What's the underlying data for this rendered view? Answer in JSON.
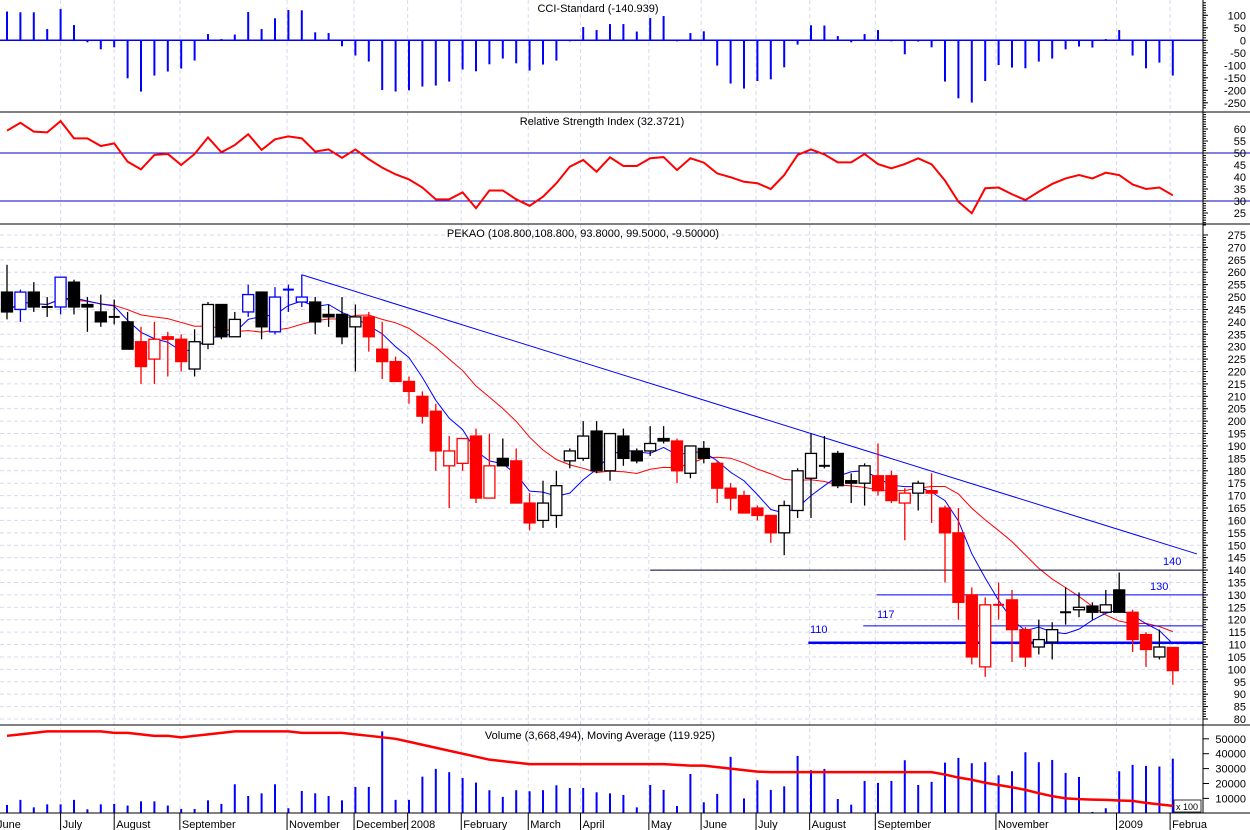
{
  "titles": {
    "cci": "CCI-Standard (-140.939)",
    "rsi": "Relative Strength Index (32.3721)",
    "price": "PEKAO (108.800,108.800, 93.8000, 99.5000, -9.50000)",
    "volume": "Volume (3,668,494), Moving Average (119.925)"
  },
  "colors": {
    "k": "#000000",
    "b": "#0000ff",
    "r": "#ff0000",
    "ma_fast": "#0000ff",
    "ma_slow": "#ff0000",
    "grid": "#d8d8f0"
  },
  "chart_data": {
    "type": "candlestick",
    "symbol": "PEKAO",
    "period": "weekly",
    "months": [
      {
        "label": "June",
        "at": -0.9
      },
      {
        "label": "July",
        "at": 4.0
      },
      {
        "label": "August",
        "at": 8.0
      },
      {
        "label": "September",
        "at": 12.9
      },
      {
        "label": "November",
        "at": 20.9
      },
      {
        "label": "December",
        "at": 25.9
      },
      {
        "label": "2008",
        "at": 29.9
      },
      {
        "label": "February",
        "at": 33.9
      },
      {
        "label": "March",
        "at": 38.9
      },
      {
        "label": "April",
        "at": 42.8
      },
      {
        "label": "May",
        "at": 47.9
      },
      {
        "label": "June",
        "at": 51.8
      },
      {
        "label": "July",
        "at": 55.9
      },
      {
        "label": "August",
        "at": 59.9
      },
      {
        "label": "September",
        "at": 64.8
      },
      {
        "label": "November",
        "at": 73.8
      },
      {
        "label": "2009",
        "at": 82.8
      },
      {
        "label": "Februa",
        "at": 86.8
      }
    ],
    "price": {
      "ylim": [
        80,
        275
      ],
      "ticks": [
        275,
        270,
        265,
        260,
        255,
        250,
        245,
        240,
        235,
        230,
        225,
        220,
        215,
        210,
        205,
        200,
        195,
        190,
        185,
        180,
        175,
        170,
        165,
        160,
        155,
        150,
        145,
        140,
        135,
        130,
        125,
        120,
        115,
        110,
        105,
        100,
        95,
        90,
        85,
        80
      ],
      "candles_ohlc_color": [
        [
          252,
          263,
          241,
          244,
          "k"
        ],
        [
          245,
          253,
          240,
          252,
          "b"
        ],
        [
          252,
          256,
          244,
          246,
          "k"
        ],
        [
          246,
          250,
          242,
          246,
          "k"
        ],
        [
          246,
          258,
          243,
          258,
          "b"
        ],
        [
          256,
          257,
          243,
          246,
          "k"
        ],
        [
          247,
          250,
          236,
          246,
          "k"
        ],
        [
          244,
          251,
          238,
          240,
          "k"
        ],
        [
          242,
          249,
          239,
          242,
          "k"
        ],
        [
          240,
          244,
          229,
          229,
          "k"
        ],
        [
          232,
          238,
          215,
          222,
          "r"
        ],
        [
          225,
          240,
          215,
          233,
          "r"
        ],
        [
          234,
          236,
          218,
          233,
          "r"
        ],
        [
          233,
          235,
          220,
          224,
          "r"
        ],
        [
          221,
          237,
          218,
          232,
          "k"
        ],
        [
          231,
          248,
          229,
          247,
          "k"
        ],
        [
          247,
          247,
          233,
          234,
          "k"
        ],
        [
          234,
          244,
          234,
          241,
          "k"
        ],
        [
          244,
          255,
          242,
          251,
          "b"
        ],
        [
          252,
          252,
          233,
          238,
          "k"
        ],
        [
          236,
          254,
          235,
          250,
          "b"
        ],
        [
          253,
          255,
          244,
          253,
          "b"
        ],
        [
          248,
          259,
          246,
          250,
          "b"
        ],
        [
          248,
          250,
          235,
          240,
          "k"
        ],
        [
          243,
          247,
          238,
          242,
          "k"
        ],
        [
          243,
          250,
          231,
          234,
          "k"
        ],
        [
          238,
          247,
          220,
          242,
          "k"
        ],
        [
          242,
          244,
          228,
          234,
          "r"
        ],
        [
          229,
          240,
          217,
          224,
          "r"
        ],
        [
          224,
          226,
          216,
          216,
          "r"
        ],
        [
          216,
          218,
          207,
          212,
          "r"
        ],
        [
          210,
          212,
          199,
          202,
          "r"
        ],
        [
          204,
          207,
          180,
          188,
          "r"
        ],
        [
          182,
          194,
          165,
          188,
          "r"
        ],
        [
          183,
          193,
          180,
          193,
          "r"
        ],
        [
          194,
          197,
          167,
          169,
          "r"
        ],
        [
          169,
          195,
          169,
          182,
          "r"
        ],
        [
          185,
          193,
          182,
          182,
          "k"
        ],
        [
          184,
          189,
          167,
          167,
          "r"
        ],
        [
          167,
          171,
          156,
          159,
          "r"
        ],
        [
          160,
          176,
          157,
          167,
          "k"
        ],
        [
          162,
          180,
          157,
          174,
          "k"
        ],
        [
          184,
          189,
          181,
          188,
          "k"
        ],
        [
          185,
          200,
          184,
          194,
          "k"
        ],
        [
          196,
          200,
          179,
          180,
          "k"
        ],
        [
          180,
          195,
          176,
          195,
          "k"
        ],
        [
          194,
          197,
          182,
          185,
          "k"
        ],
        [
          188,
          189,
          183,
          184,
          "k"
        ],
        [
          188,
          198,
          186,
          191,
          "k"
        ],
        [
          193,
          198,
          191,
          192,
          "k"
        ],
        [
          192,
          193,
          175,
          180,
          "r"
        ],
        [
          179,
          190,
          177,
          190,
          "k"
        ],
        [
          189,
          192,
          183,
          185,
          "k"
        ],
        [
          183,
          184,
          167,
          173,
          "r"
        ],
        [
          173,
          175,
          164,
          169,
          "r"
        ],
        [
          170,
          172,
          163,
          163,
          "r"
        ],
        [
          165,
          166,
          160,
          162,
          "r"
        ],
        [
          162,
          162,
          151,
          155,
          "r"
        ],
        [
          155,
          168,
          146,
          166,
          "k"
        ],
        [
          164,
          181,
          161,
          180,
          "k"
        ],
        [
          177,
          195,
          161,
          187,
          "k"
        ],
        [
          182,
          194,
          181,
          182,
          "k"
        ],
        [
          187,
          188,
          173,
          174,
          "k"
        ],
        [
          176,
          179,
          167,
          175,
          "k"
        ],
        [
          175,
          183,
          166,
          182,
          "k"
        ],
        [
          178,
          191,
          170,
          172,
          "r"
        ],
        [
          178,
          180,
          167,
          168,
          "r"
        ],
        [
          167,
          173,
          152,
          171,
          "r"
        ],
        [
          171,
          176,
          164,
          175,
          "k"
        ],
        [
          172,
          179,
          159,
          171,
          "r"
        ],
        [
          165,
          166,
          135,
          155,
          "r"
        ],
        [
          155,
          165,
          120,
          127,
          "r"
        ],
        [
          130,
          133,
          102,
          105,
          "r"
        ],
        [
          101,
          129,
          97,
          126,
          "r"
        ],
        [
          126,
          135,
          120,
          126,
          "r"
        ],
        [
          128,
          132,
          103,
          116,
          "r"
        ],
        [
          116,
          117,
          101,
          105,
          "r"
        ],
        [
          109,
          120,
          106,
          112,
          "k"
        ],
        [
          111,
          119,
          104,
          116,
          "k"
        ],
        [
          123,
          133,
          118,
          123,
          "k"
        ],
        [
          124,
          131,
          121,
          125,
          "k"
        ],
        [
          125.5,
          127,
          120,
          123,
          "k"
        ],
        [
          123,
          132,
          123,
          126,
          "k"
        ],
        [
          132,
          139,
          123,
          123,
          "k"
        ],
        [
          123,
          124,
          107,
          112,
          "r"
        ],
        [
          114,
          115,
          101,
          108,
          "r"
        ],
        [
          105,
          116,
          104,
          109,
          "k"
        ],
        [
          108.8,
          108.8,
          93.8,
          99.5,
          "r"
        ]
      ],
      "ma_fast_period": 5,
      "ma_slow_period": 13,
      "trendline": {
        "from": [
          22,
          259
        ],
        "to": [
          88.8,
          146.5
        ]
      },
      "levels": [
        {
          "label": "140",
          "value": 140,
          "from": 48
        },
        {
          "label": "130",
          "value": 130,
          "from": 64.9
        },
        {
          "label": "117",
          "value": 117.5,
          "from": 63.9
        },
        {
          "label": "110",
          "value": 110.7,
          "from": 59.8
        }
      ]
    },
    "cci": {
      "ylim": [
        -270,
        120
      ],
      "ticks": [
        100,
        50,
        0,
        -50,
        -100,
        -150,
        -200,
        -250
      ],
      "values": [
        115,
        112,
        112,
        45,
        125,
        61,
        -8,
        -36,
        -28,
        -152,
        -205,
        -141,
        -125,
        -113,
        -81,
        25,
        5,
        23,
        113,
        45,
        88,
        121,
        120,
        32,
        29,
        -24,
        -61,
        -85,
        -199,
        -205,
        -200,
        -185,
        -181,
        -165,
        -117,
        -124,
        -96,
        -73,
        -92,
        -121,
        -97,
        -81,
        -4,
        53,
        41,
        65,
        65,
        35,
        89,
        97,
        -4,
        29,
        36,
        -101,
        -173,
        -193,
        -163,
        -156,
        -108,
        -17,
        60,
        59,
        17,
        -8,
        25,
        41,
        -4,
        -56,
        -5,
        -28,
        -165,
        -232,
        -249,
        -163,
        -99,
        -109,
        -112,
        -85,
        -73,
        -36,
        -25,
        -29,
        5,
        41,
        -61,
        -112,
        -89,
        -141
      ]
    },
    "rsi": {
      "ylim": [
        20,
        67
      ],
      "ticks": [
        60,
        55,
        50,
        45,
        40,
        35,
        30,
        25
      ],
      "levels": [
        50,
        30
      ],
      "values": [
        59.3,
        62.6,
        58.9,
        58.6,
        63.3,
        56.1,
        56.1,
        52.9,
        54,
        46.4,
        43.2,
        49.2,
        49.6,
        45,
        49.6,
        56.5,
        50.3,
        53.3,
        57.8,
        51.3,
        55.7,
        56.9,
        56.1,
        50.6,
        51.5,
        48,
        51.5,
        47.4,
        43.9,
        41.1,
        39,
        35.6,
        30.7,
        30.7,
        33.6,
        27,
        34.4,
        34.4,
        30.7,
        28,
        31.8,
        37.4,
        44.3,
        47.1,
        42.2,
        48.2,
        44.6,
        44.6,
        47.8,
        48.3,
        42.9,
        47.8,
        46,
        41.5,
        39.9,
        38,
        37.4,
        35,
        40.8,
        49.2,
        51.5,
        49.4,
        46.1,
        46.1,
        49.6,
        45.4,
        43.6,
        45.4,
        47.8,
        45.3,
        38.5,
        29.7,
        24.9,
        35.3,
        35.6,
        32.8,
        30.4,
        33.9,
        37.1,
        39.4,
        40.8,
        39.4,
        41.8,
        40.8,
        36.9,
        35,
        35.6,
        32.37
      ]
    },
    "volume": {
      "unit_label": "x 100",
      "ticks": [
        50000,
        40000,
        30000,
        20000,
        10000
      ],
      "values": [
        5600,
        9000,
        4000,
        6000,
        6000,
        9000,
        2700,
        6000,
        6300,
        5200,
        8000,
        8000,
        5200,
        2900,
        2900,
        8700,
        6300,
        19500,
        11600,
        13400,
        19500,
        3400,
        15000,
        13400,
        11600,
        8700,
        17700,
        17700,
        55000,
        9000,
        9000,
        24600,
        29800,
        27600,
        23700,
        20600,
        15500,
        11000,
        15500,
        14800,
        15500,
        18800,
        17000,
        17000,
        14100,
        13400,
        12300,
        4000,
        19000,
        15700,
        4900,
        26400,
        7400,
        13000,
        37900,
        10000,
        22200,
        15700,
        18100,
        38500,
        28900,
        29800,
        9600,
        5800,
        21700,
        20400,
        21700,
        35600,
        19000,
        21100,
        34000,
        37200,
        33600,
        34300,
        25500,
        28200,
        41000,
        34300,
        35800,
        27100,
        24400,
        900,
        3400,
        28200,
        32500,
        31800,
        31400,
        36685
      ],
      "moving_average": [
        52000,
        53000,
        54000,
        55000,
        55000,
        55000,
        55000,
        55000,
        54000,
        54000,
        53000,
        52000,
        52000,
        51000,
        52000,
        53000,
        54000,
        55000,
        55000,
        55000,
        55000,
        55000,
        54000,
        54000,
        54000,
        54000,
        53000,
        52000,
        51000,
        50000,
        48000,
        46000,
        44000,
        42000,
        40000,
        38000,
        36000,
        35000,
        34000,
        33000,
        33000,
        33000,
        33000,
        33000,
        33000,
        33000,
        33000,
        33000,
        33000,
        33000,
        32500,
        32000,
        32000,
        31000,
        30000,
        29000,
        28000,
        27600,
        27600,
        27600,
        27600,
        27600,
        27600,
        27600,
        27600,
        27600,
        27600,
        27600,
        27600,
        27600,
        26000,
        24000,
        22500,
        20500,
        19000,
        17500,
        15700,
        13500,
        11500,
        10000,
        9500,
        9200,
        9000,
        8600,
        8300,
        7000,
        6000,
        5000
      ]
    }
  }
}
